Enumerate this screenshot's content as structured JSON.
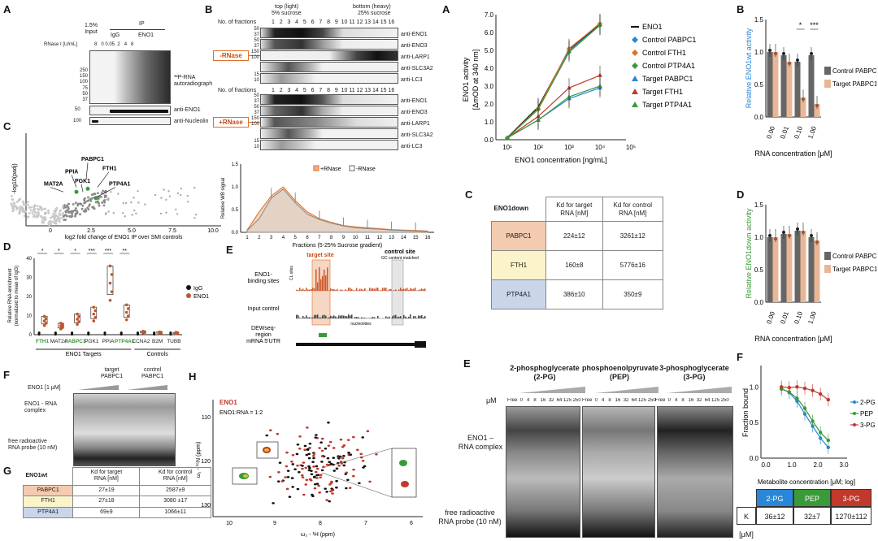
{
  "panels": {
    "left_A": "A",
    "left_B": "B",
    "left_C": "C",
    "left_D": "D",
    "left_E": "E",
    "left_F": "F",
    "left_G": "G",
    "left_H": "H",
    "right_A": "A",
    "right_B": "B",
    "right_C": "C",
    "right_D": "D",
    "right_E": "E",
    "right_F": "F"
  },
  "colors": {
    "accent_orange": "#e07028",
    "enol_red": "#c0392b",
    "green": "#3a9a3a",
    "blue": "#2a86d6"
  },
  "icons": [
    "triangle-ramp-icon",
    "gel-band-icon"
  ],
  "panelA_left": {
    "input_label": "1.5%\nInput",
    "ip_label": "IP",
    "igg": "IgG",
    "eno1": "ENO1",
    "rnase": "RNase I [U/mL]",
    "rnase_vals": "8   0 0.05  2   4   8",
    "mw_top": [
      "250",
      "150",
      "100",
      "75",
      "50",
      "37"
    ],
    "mw_mid": "50",
    "mw_bot": "100",
    "auto": "³²P-RNA\nautoradiograph",
    "anti_eno1": "anti-ENO1",
    "anti_nucleolin": "anti-Nucleolin"
  },
  "panelB_left": {
    "top_light": "top (light)",
    "sucrose5": "5% sucrose",
    "bottom_heavy": "bottom (heavy)",
    "sucrose25": "25% sucrose",
    "fractions_label": "No. of fractions",
    "fractions": "1   2   3   4   5   6   7   8   9  10 11 12 13 14 15 16",
    "minus_rnase": "-RNase",
    "plus_rnase": "+RNase",
    "blots": [
      "anti-ENO1",
      "anti-ENO3",
      "anti-LARP1",
      "anti-SLC3A2",
      "anti-LC3"
    ],
    "blot_mw": [
      "50",
      "37",
      "50",
      "37",
      "150",
      "100",
      "150",
      "100",
      "15",
      "10"
    ]
  },
  "chart_data": [
    {
      "type": "scatter",
      "title": "",
      "xlabel": "log2 fold change of ENO1 IP over SMI controls",
      "ylabel": "-log10(padj)",
      "xticks": [
        "0",
        "2.5",
        "5.0",
        "7.5",
        "10.0"
      ],
      "annotations": [
        "PABPC1",
        "PPIA",
        "PGK1",
        "FTH1",
        "MAT2A",
        "PTP4A1"
      ]
    },
    {
      "type": "area",
      "title": "",
      "xlabel": "Fractions (5-25% Sucrose gradient)",
      "ylabel": "Relative WB signal",
      "categories": [
        "1",
        "2",
        "3",
        "4",
        "5",
        "6",
        "7",
        "8",
        "9",
        "10",
        "11",
        "12",
        "13",
        "14",
        "15",
        "16"
      ],
      "series": [
        {
          "name": "+RNase",
          "values": [
            0.05,
            0.45,
            0.8,
            1.0,
            0.7,
            0.45,
            0.3,
            0.22,
            0.15,
            0.12,
            0.1,
            0.08,
            0.06,
            0.05,
            0.04,
            0.03
          ]
        },
        {
          "name": "-RNase",
          "values": [
            0.04,
            0.3,
            0.75,
            0.95,
            0.65,
            0.4,
            0.28,
            0.2,
            0.14,
            0.1,
            0.08,
            0.07,
            0.05,
            0.04,
            0.03,
            0.02
          ]
        }
      ],
      "ylim": [
        0,
        1.5
      ],
      "yticks": [
        "0.0",
        "0.5",
        "1.0",
        "1.5"
      ]
    },
    {
      "type": "bar",
      "title": "",
      "ylabel": "Relative RNA enrichment\n(normalized to mean of IgG)",
      "categories": [
        "FTH1",
        "MAT2A",
        "PABPC1",
        "PGK1",
        "PPIA",
        "PTP4A1",
        "CCNA2",
        "B2M",
        "TUBB"
      ],
      "series": [
        {
          "name": "IgG",
          "values": [
            1,
            1,
            1,
            1,
            1,
            1,
            1,
            1,
            1
          ]
        },
        {
          "name": "ENO1",
          "values": [
            8,
            5,
            9,
            12,
            30,
            13,
            1.5,
            1.2,
            1.0
          ]
        }
      ],
      "ylim": [
        0,
        40
      ],
      "yticks": [
        "0",
        "10",
        "20",
        "30",
        "40"
      ],
      "significance": [
        "*",
        "*",
        "*",
        "***",
        "***",
        "**"
      ],
      "groups": [
        "ENO1 Targets",
        "Controls"
      ]
    },
    {
      "type": "line",
      "title": "",
      "xlabel": "ENO1 concentration [ng/mL]",
      "ylabel": "ENO1 activity\n[ΔmOD at 340 nm]",
      "x": [
        10,
        100,
        1000,
        10000
      ],
      "xticks": [
        "10¹",
        "10²",
        "10³",
        "10⁴",
        "10⁵"
      ],
      "yticks": [
        "0.0",
        "1.0",
        "2.0",
        "3.0",
        "4.0",
        "5.0",
        "6.0",
        "7.0"
      ],
      "ylim": [
        0,
        7
      ],
      "series": [
        {
          "name": "ENO1",
          "values": [
            0.1,
            1.8,
            5.0,
            6.5
          ],
          "color": "#111111"
        },
        {
          "name": "Control PABPC1",
          "values": [
            0.1,
            1.7,
            5.0,
            6.4
          ],
          "color": "#2a86d6"
        },
        {
          "name": "Control FTH1",
          "values": [
            0.1,
            1.75,
            5.1,
            6.5
          ],
          "color": "#e07028"
        },
        {
          "name": "Control PTP4A1",
          "values": [
            0.1,
            1.7,
            4.9,
            6.4
          ],
          "color": "#3a9a3a"
        },
        {
          "name": "Target PABPC1",
          "values": [
            0.1,
            1.1,
            2.3,
            2.9
          ],
          "color": "#2a86d6"
        },
        {
          "name": "Target FTH1",
          "values": [
            0.1,
            1.3,
            2.9,
            3.6
          ],
          "color": "#c0392b"
        },
        {
          "name": "Target PTP4A1",
          "values": [
            0.1,
            1.1,
            2.4,
            3.0
          ],
          "color": "#3a9a3a"
        }
      ]
    },
    {
      "type": "bar",
      "title": "",
      "ylabel": "Relative ENO1wt activity",
      "xlabel": "RNA concentration [μM]",
      "categories": [
        "0.00",
        "0.01",
        "0.10",
        "1.00"
      ],
      "series": [
        {
          "name": "Control PABPC1",
          "values": [
            1.0,
            0.95,
            0.85,
            0.95
          ]
        },
        {
          "name": "Target PABPC1",
          "values": [
            1.0,
            0.85,
            0.3,
            0.2
          ]
        }
      ],
      "ylim": [
        0,
        1.5
      ],
      "yticks": [
        "0.0",
        "0.5",
        "1.0",
        "1.5"
      ],
      "significance": [
        "*",
        "***"
      ]
    },
    {
      "type": "bar",
      "title": "",
      "ylabel": "Relative ENO1down activity",
      "xlabel": "RNA concentration [μM]",
      "categories": [
        "0.00",
        "0.01",
        "0.10",
        "1.00"
      ],
      "series": [
        {
          "name": "Control PABPC1",
          "values": [
            1.0,
            1.05,
            1.1,
            1.0
          ]
        },
        {
          "name": "Target PABPC1",
          "values": [
            1.0,
            1.05,
            1.1,
            0.95
          ]
        }
      ],
      "ylim": [
        0,
        1.5
      ],
      "yticks": [
        "0.0",
        "0.5",
        "1.0",
        "1.5"
      ]
    },
    {
      "type": "line",
      "title": "",
      "xlabel": "Metabolite concentration [μM; log]",
      "ylabel": "Fraction bound",
      "x": [
        0.6,
        0.9,
        1.2,
        1.5,
        1.8,
        2.1,
        2.4
      ],
      "xticks": [
        "0.0",
        "1.0",
        "2.0",
        "3.0"
      ],
      "yticks": [
        "0.0",
        "0.5",
        "1.0"
      ],
      "ylim": [
        0,
        1.3
      ],
      "series": [
        {
          "name": "2-PG",
          "values": [
            0.98,
            0.92,
            0.8,
            0.62,
            0.45,
            0.28,
            0.15
          ],
          "color": "#2a86d6"
        },
        {
          "name": "PEP",
          "values": [
            0.97,
            0.93,
            0.84,
            0.7,
            0.52,
            0.36,
            0.25
          ],
          "color": "#3a9a3a"
        },
        {
          "name": "3-PG",
          "values": [
            1.0,
            0.99,
            1.0,
            0.98,
            0.95,
            0.9,
            0.82
          ],
          "color": "#c0392b"
        }
      ]
    }
  ],
  "panelE_left": {
    "target_site": "target site",
    "control_site": "control site",
    "control_sub": "GC content matched",
    "binding_sites": "ENO1-\nbinding sites",
    "input_control": "Input control",
    "dewseq": "DEWseq-\nregion\nmRNA 5'UTR",
    "cl_sites": "CL sites",
    "nucleotides": "nucleotides",
    "ticks": [
      "20",
      "10",
      "0",
      "20",
      "10",
      "0"
    ]
  },
  "panelF_left": {
    "eno1_label": "ENO1 [1 μM]",
    "target": "target\nPABPC1",
    "control": "control\nPABPC1",
    "complex": "ENO1 - RNA\ncomplex",
    "free": "free radioactive\nRNA probe (10 nM)"
  },
  "panelG_left": {
    "header": "ENO1wt",
    "col1": "Kd for target\nRNA [nM]",
    "col2": "Kd for control\nRNA [nM]",
    "rows": [
      {
        "name": "PABPC1",
        "v1": "27±19",
        "v2": "2587±9",
        "color": "#f3cbb0"
      },
      {
        "name": "FTH1",
        "v1": "27±18",
        "v2": "3080 ±17",
        "color": "#fbf3c9"
      },
      {
        "name": "PTP4A1",
        "v1": "69±9",
        "v2": "1066±11",
        "color": "#c9d6ea"
      }
    ]
  },
  "panelH_left": {
    "eno1": "ENO1",
    "ratio": "ENO1:RNA = 1:2",
    "xlabel": "ω₂ - ¹H (ppm)",
    "ylabel": "ω₁ - ¹⁵N (ppm)",
    "xticks": [
      "10",
      "9",
      "8",
      "7",
      "6"
    ],
    "yticks": [
      "110",
      "120",
      "130"
    ]
  },
  "panelC_right": {
    "header": "ENO1down",
    "col1": "Kd for target\nRNA [nM]",
    "col2": "Kd for control\nRNA [nM]",
    "rows": [
      {
        "name": "PABPC1",
        "v1": "224±12",
        "v2": "3261±12",
        "color": "#f3cbb0"
      },
      {
        "name": "FTH1",
        "v1": "160±8",
        "v2": "5776±16",
        "color": "#fbf3c9"
      },
      {
        "name": "PTP4A1",
        "v1": "386±10",
        "v2": "350±9",
        "color": "#c9d6ea"
      }
    ]
  },
  "panelE_right": {
    "titles": [
      "2-phosphoglycerate\n(2-PG)",
      "phosphoenolpyruvate\n(PEP)",
      "3-phosphoglycerate\n(3-PG)"
    ],
    "um": "μM",
    "conc": "Free  0   4   8   16  32  64 125 250",
    "complex": "ENO1 –\nRNA complex",
    "free": "free radioactive\nRNA probe (10 nM)"
  },
  "panelF_right_table": {
    "k": "K [μM]",
    "cols": [
      {
        "name": "2-PG",
        "val": "36±12",
        "color": "#2a86d6"
      },
      {
        "name": "PEP",
        "val": "32±7",
        "color": "#3a9a3a"
      },
      {
        "name": "3-PG",
        "val": "1270±112",
        "color": "#c0392b"
      }
    ]
  }
}
